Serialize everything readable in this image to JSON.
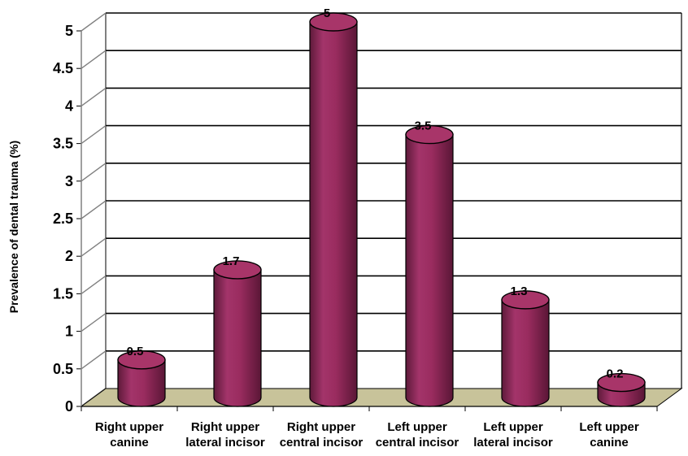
{
  "chart_data": {
    "type": "bar",
    "style": "3d-cylinder",
    "categories": [
      [
        "Right upper",
        "canine"
      ],
      [
        "Right upper",
        "lateral incisor"
      ],
      [
        "Right upper",
        "central incisor"
      ],
      [
        "Left upper",
        "central incisor"
      ],
      [
        "Left upper",
        "lateral incisor"
      ],
      [
        "Left upper",
        "canine"
      ]
    ],
    "values": [
      0.5,
      1.7,
      5,
      3.5,
      1.3,
      0.2
    ],
    "value_labels": [
      "0.5",
      "1.7",
      "5",
      "3.5",
      "1.3",
      "0.2"
    ],
    "title": "",
    "xlabel": "",
    "ylabel": "Prevalence of dental trauma (%)",
    "ylim": [
      0,
      5
    ],
    "yticks": [
      "0",
      "0.5",
      "1",
      "1.5",
      "2",
      "2.5",
      "3",
      "3.5",
      "4",
      "4.5",
      "5"
    ],
    "grid": true,
    "legend": "none",
    "colors": {
      "bar_front": "#9b2d5f",
      "bar_top": "#a83569",
      "floor": "#c8c39a",
      "grid": "#000000"
    }
  }
}
